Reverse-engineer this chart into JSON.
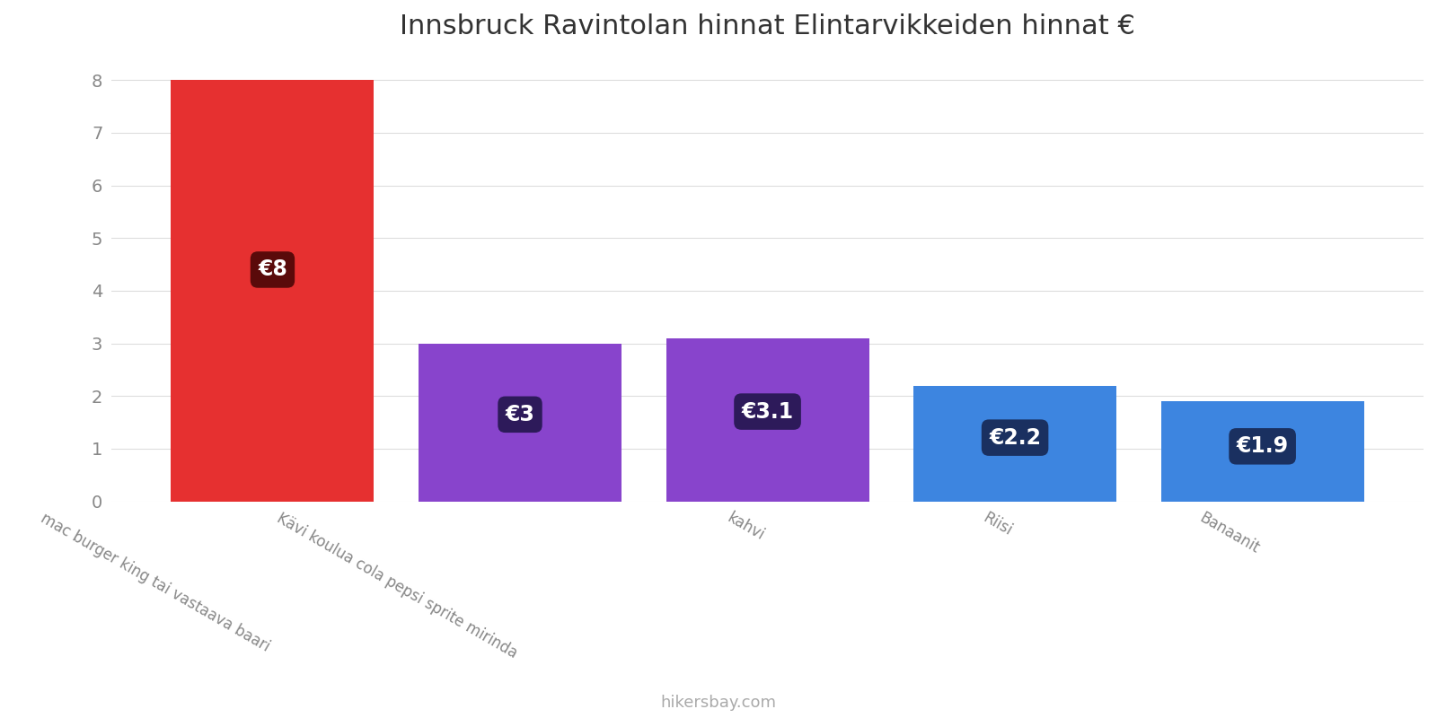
{
  "title": "Innsbruck Ravintolan hinnat Elintarvikkeiden hinnat €",
  "categories": [
    "mac burger king tai vastaava baari",
    "Kävi koulua cola pepsi sprite mirinda",
    "kahvi",
    "Riisi",
    "Banaanit"
  ],
  "values": [
    8,
    3,
    3.1,
    2.2,
    1.9
  ],
  "bar_colors": [
    "#e63030",
    "#8844cc",
    "#8844cc",
    "#3d85e0",
    "#3d85e0"
  ],
  "label_bg_colors": [
    "#5a0a0a",
    "#2d1a5a",
    "#2d1a5a",
    "#1a3060",
    "#1a3060"
  ],
  "labels": [
    "€8",
    "€3",
    "€3.1",
    "€2.2",
    "€1.9"
  ],
  "ylim": [
    0,
    8.4
  ],
  "yticks": [
    0,
    1,
    2,
    3,
    4,
    5,
    6,
    7,
    8
  ],
  "footer": "hikersbay.com",
  "title_fontsize": 22,
  "label_fontsize": 17,
  "tick_fontsize": 14,
  "xlabel_fontsize": 12,
  "background_color": "#ffffff",
  "grid_color": "#dddddd"
}
